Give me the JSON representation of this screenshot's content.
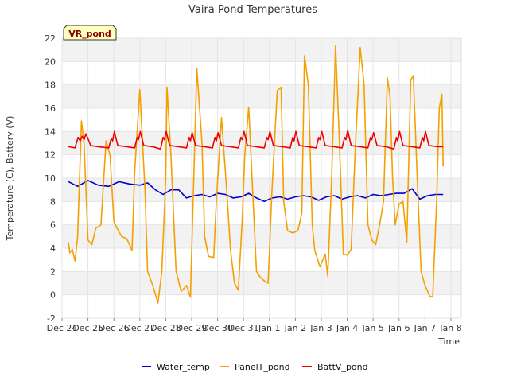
{
  "chart_data": {
    "type": "line",
    "title": "Vaira Pond Temperatures",
    "xlabel": "Time",
    "ylabel": "Temperature (C), Battery (V)",
    "site_badge": "VR_pond",
    "ylim": [
      -2,
      22
    ],
    "yticks": [
      -2,
      0,
      2,
      4,
      6,
      8,
      10,
      12,
      14,
      16,
      18,
      20,
      22
    ],
    "xlim": [
      0,
      15.4
    ],
    "xticks": [
      {
        "v": 0,
        "label": "Dec 24"
      },
      {
        "v": 1,
        "label": "Dec 25"
      },
      {
        "v": 2,
        "label": "Dec 26"
      },
      {
        "v": 3,
        "label": "Dec 27"
      },
      {
        "v": 4,
        "label": "Dec 28"
      },
      {
        "v": 5,
        "label": "Dec 29"
      },
      {
        "v": 6,
        "label": "Dec 30"
      },
      {
        "v": 7,
        "label": "Dec 31"
      },
      {
        "v": 8,
        "label": "Jan 1"
      },
      {
        "v": 9,
        "label": "Jan 2"
      },
      {
        "v": 10,
        "label": "Jan 3"
      },
      {
        "v": 11,
        "label": "Jan 4"
      },
      {
        "v": 12,
        "label": "Jan 5"
      },
      {
        "v": 13,
        "label": "Jan 6"
      },
      {
        "v": 14,
        "label": "Jan 7"
      },
      {
        "v": 15,
        "label": "Jan 8"
      }
    ],
    "grid": true,
    "legend_position": "bottom",
    "series": [
      {
        "name": "Water_temp",
        "color": "#0000cc",
        "x": [
          0.25,
          0.6,
          1.0,
          1.4,
          1.8,
          2.2,
          2.6,
          3.0,
          3.3,
          3.6,
          3.9,
          4.2,
          4.5,
          4.8,
          5.1,
          5.4,
          5.7,
          6.0,
          6.3,
          6.6,
          6.9,
          7.2,
          7.5,
          7.8,
          8.1,
          8.4,
          8.7,
          9.0,
          9.3,
          9.6,
          9.9,
          10.2,
          10.5,
          10.8,
          11.1,
          11.4,
          11.7,
          12.0,
          12.3,
          12.6,
          12.9,
          13.2,
          13.5,
          13.8,
          14.1,
          14.4,
          14.7
        ],
        "y": [
          9.7,
          9.3,
          9.8,
          9.4,
          9.3,
          9.7,
          9.5,
          9.4,
          9.6,
          9.0,
          8.6,
          9.0,
          9.0,
          8.3,
          8.5,
          8.6,
          8.4,
          8.7,
          8.6,
          8.3,
          8.4,
          8.7,
          8.3,
          8.0,
          8.3,
          8.4,
          8.2,
          8.4,
          8.5,
          8.4,
          8.1,
          8.4,
          8.5,
          8.2,
          8.4,
          8.5,
          8.3,
          8.6,
          8.5,
          8.6,
          8.7,
          8.7,
          9.1,
          8.2,
          8.5,
          8.6,
          8.6
        ]
      },
      {
        "name": "PanelT_pond",
        "color": "#f5a000",
        "x": [
          0.25,
          0.3,
          0.4,
          0.5,
          0.6,
          0.75,
          0.85,
          1.0,
          1.15,
          1.3,
          1.5,
          1.7,
          1.85,
          2.0,
          2.1,
          2.3,
          2.5,
          2.7,
          2.8,
          3.0,
          3.2,
          3.3,
          3.5,
          3.7,
          3.85,
          4.0,
          4.05,
          4.2,
          4.4,
          4.6,
          4.8,
          4.95,
          5.05,
          5.2,
          5.4,
          5.5,
          5.65,
          5.85,
          5.95,
          6.15,
          6.35,
          6.5,
          6.65,
          6.8,
          6.95,
          7.05,
          7.2,
          7.35,
          7.5,
          7.65,
          7.8,
          7.95,
          8.1,
          8.3,
          8.45,
          8.55,
          8.7,
          8.9,
          9.1,
          9.25,
          9.35,
          9.5,
          9.65,
          9.75,
          9.95,
          10.15,
          10.25,
          10.4,
          10.55,
          10.7,
          10.85,
          11.0,
          11.15,
          11.3,
          11.5,
          11.65,
          11.8,
          11.95,
          12.1,
          12.25,
          12.4,
          12.55,
          12.65,
          12.75,
          12.85,
          13.0,
          13.15,
          13.3,
          13.45,
          13.55,
          13.7,
          13.85,
          14.0,
          14.2,
          14.3,
          14.45,
          14.55,
          14.65,
          14.7
        ],
        "y": [
          4.5,
          3.6,
          3.9,
          2.9,
          5.0,
          14.9,
          13.0,
          4.7,
          4.3,
          5.7,
          6.0,
          13.2,
          12.0,
          6.3,
          5.8,
          5.0,
          4.8,
          3.8,
          10.5,
          17.6,
          9.0,
          2.0,
          0.8,
          -0.7,
          2.0,
          10.0,
          17.8,
          12.0,
          2.0,
          0.3,
          0.8,
          -0.2,
          7.5,
          19.4,
          13.0,
          5.0,
          3.3,
          3.2,
          8.0,
          15.2,
          9.0,
          3.8,
          1.0,
          0.4,
          6.5,
          12.0,
          16.1,
          9.0,
          2.0,
          1.5,
          1.2,
          1.0,
          9.0,
          17.5,
          17.8,
          8.0,
          5.5,
          5.3,
          5.5,
          7.0,
          20.5,
          18.0,
          6.0,
          3.8,
          2.4,
          3.5,
          1.6,
          10.0,
          21.4,
          13.0,
          3.5,
          3.4,
          3.9,
          12.0,
          21.2,
          18.0,
          6.0,
          4.7,
          4.3,
          6.0,
          8.0,
          18.6,
          17.0,
          10.0,
          6.0,
          7.8,
          8.0,
          4.5,
          18.4,
          18.8,
          10.0,
          2.0,
          0.8,
          -0.2,
          -0.1,
          8.0,
          16.0,
          17.2,
          11.0
        ]
      },
      {
        "name": "BattV_pond",
        "color": "#ee0000",
        "x": [
          0.25,
          0.5,
          0.62,
          0.7,
          0.78,
          0.85,
          0.92,
          1.0,
          1.1,
          1.4,
          1.8,
          1.9,
          1.95,
          2.02,
          2.15,
          2.5,
          2.8,
          2.9,
          2.95,
          3.02,
          3.15,
          3.5,
          3.8,
          3.9,
          3.95,
          4.02,
          4.15,
          4.5,
          4.8,
          4.9,
          4.95,
          5.02,
          5.15,
          5.5,
          5.8,
          5.9,
          5.95,
          6.02,
          6.15,
          6.5,
          6.8,
          6.9,
          6.95,
          7.02,
          7.15,
          7.5,
          7.8,
          7.9,
          7.95,
          8.02,
          8.15,
          8.5,
          8.8,
          8.9,
          8.95,
          9.02,
          9.15,
          9.5,
          9.8,
          9.9,
          9.95,
          10.02,
          10.15,
          10.5,
          10.8,
          10.9,
          10.95,
          11.02,
          11.15,
          11.5,
          11.8,
          11.9,
          11.95,
          12.02,
          12.15,
          12.5,
          12.8,
          12.9,
          12.95,
          13.02,
          13.15,
          13.5,
          13.8,
          13.9,
          13.95,
          14.02,
          14.15,
          14.5,
          14.7
        ],
        "y": [
          12.7,
          12.6,
          13.5,
          13.2,
          13.6,
          13.3,
          13.8,
          13.4,
          12.8,
          12.7,
          12.6,
          13.4,
          13.2,
          14.0,
          12.8,
          12.7,
          12.6,
          13.5,
          13.3,
          14.0,
          12.8,
          12.7,
          12.5,
          13.5,
          13.3,
          14.0,
          12.8,
          12.7,
          12.6,
          13.5,
          13.2,
          13.9,
          12.8,
          12.7,
          12.6,
          13.5,
          13.2,
          13.9,
          12.8,
          12.7,
          12.6,
          13.5,
          13.3,
          14.0,
          12.8,
          12.7,
          12.6,
          13.5,
          13.3,
          14.0,
          12.8,
          12.7,
          12.6,
          13.5,
          13.2,
          14.0,
          12.8,
          12.7,
          12.6,
          13.5,
          13.3,
          14.0,
          12.8,
          12.7,
          12.6,
          13.5,
          13.3,
          14.1,
          12.8,
          12.7,
          12.6,
          13.5,
          13.3,
          13.9,
          12.8,
          12.7,
          12.5,
          13.5,
          13.2,
          14.0,
          12.8,
          12.7,
          12.6,
          13.5,
          13.2,
          14.0,
          12.8,
          12.7,
          12.7
        ]
      }
    ]
  }
}
